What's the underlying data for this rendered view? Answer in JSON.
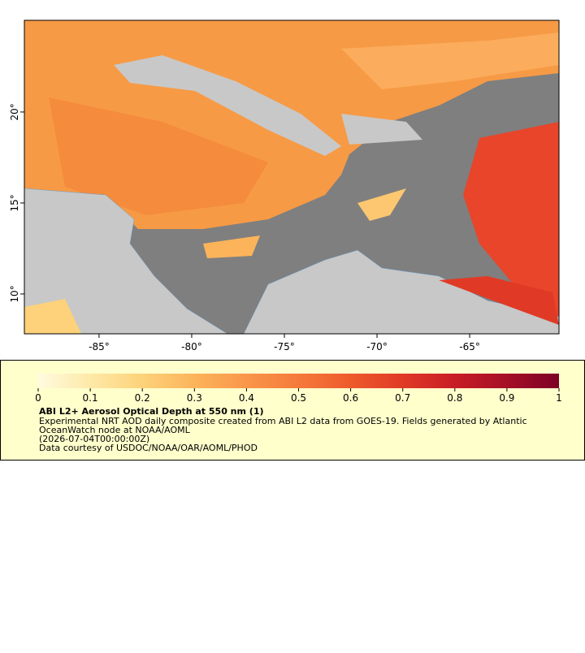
{
  "chart_data": {
    "type": "map",
    "xlim": [
      -89.03,
      -60.18
    ],
    "ylim": [
      7.81,
      25.04
    ],
    "xticks": [
      {
        "value": -85,
        "label": "-85°"
      },
      {
        "value": -80,
        "label": "-80°"
      },
      {
        "value": -75,
        "label": "-75°"
      },
      {
        "value": -70,
        "label": "-70°"
      },
      {
        "value": -65,
        "label": "-65°"
      }
    ],
    "yticks": [
      {
        "value": 10,
        "label": "10°"
      },
      {
        "value": 15,
        "label": "15°"
      },
      {
        "value": 20,
        "label": "20°"
      }
    ],
    "colorbar": {
      "clim": [
        0,
        1
      ],
      "ticks": [
        0,
        0.1,
        0.2,
        0.3,
        0.4,
        0.5,
        0.6,
        0.7,
        0.8,
        0.9,
        1
      ],
      "colormap": [
        "#fffbe0",
        "#fee9a8",
        "#fdd27a",
        "#fcb45a",
        "#f9964a",
        "#f57a3a",
        "#ee5a2c",
        "#e03a26",
        "#c81d25",
        "#a50f26",
        "#7d0025"
      ]
    },
    "title": "ABI L2+ Aerosol Optical Depth at 550 nm (1)",
    "description": [
      "Experimental NRT AOD daily composite created from ABI L2 data from GOES-19. Fields generated by Atlantic",
      "OceanWatch node at NOAA/AOML",
      "(2026-07-04T00:00:00Z)",
      "Data courtesy of USDOC/NOAA/OAR/AOML/PHOD"
    ]
  }
}
